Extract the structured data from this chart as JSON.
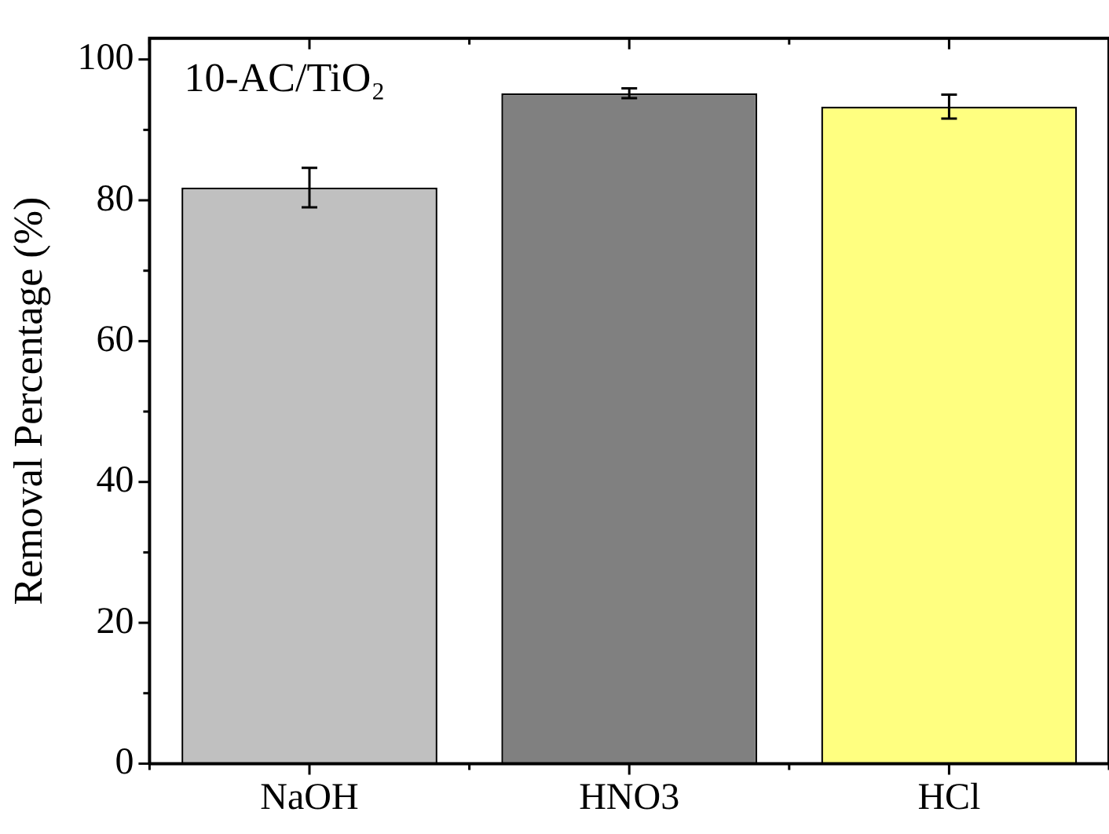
{
  "chart_data": {
    "type": "bar",
    "ylabel": "Removal Percentage (%)",
    "annotations": [
      "10-AC/TiO₂"
    ],
    "categories": [
      "NaOH",
      "HNO3",
      "HCl"
    ],
    "values": [
      81.8,
      95.2,
      93.3
    ],
    "colors": [
      "#c0c0c0",
      "#808080",
      "#ffff80"
    ],
    "errors": [
      2.8,
      0.7,
      1.7
    ],
    "ylim": [
      0,
      103
    ],
    "yticks": [
      0,
      {
        "value": 10,
        "label": null
      },
      20,
      {
        "value": 30,
        "label": null
      },
      40,
      {
        "value": 50,
        "label": null
      },
      60,
      {
        "value": 70,
        "label": null
      },
      80,
      {
        "value": 90,
        "label": null
      },
      100
    ],
    "grid": false,
    "legend": false
  }
}
